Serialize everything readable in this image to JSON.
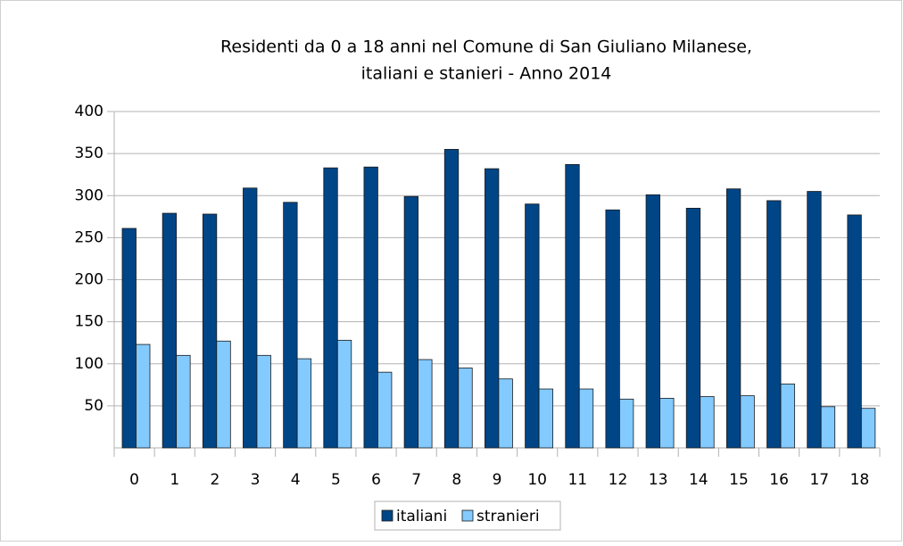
{
  "chart_data": {
    "type": "bar",
    "title": [
      "Residenti da 0 a 18 anni nel Comune di San Giuliano Milanese,",
      "italiani e stanieri - Anno 2014"
    ],
    "categories": [
      "0",
      "1",
      "2",
      "3",
      "4",
      "5",
      "6",
      "7",
      "8",
      "9",
      "10",
      "11",
      "12",
      "13",
      "14",
      "15",
      "16",
      "17",
      "18"
    ],
    "series": [
      {
        "name": "italiani",
        "color": "#004586",
        "values": [
          261,
          279,
          278,
          309,
          292,
          333,
          334,
          299,
          355,
          332,
          290,
          337,
          283,
          301,
          285,
          308,
          294,
          305,
          277
        ]
      },
      {
        "name": "stranieri",
        "color": "#83caff",
        "values": [
          123,
          110,
          127,
          110,
          106,
          128,
          90,
          105,
          95,
          82,
          70,
          70,
          58,
          59,
          61,
          62,
          76,
          49,
          47
        ]
      }
    ],
    "ylim": [
      0,
      400
    ],
    "yticks": [
      50,
      100,
      150,
      200,
      250,
      300,
      350,
      400
    ],
    "grid": true,
    "legend": "bottom"
  }
}
